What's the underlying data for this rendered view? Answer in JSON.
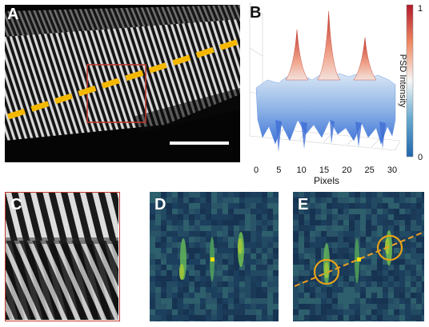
{
  "figure": {
    "panels": {
      "a": {
        "letter": "A"
      },
      "b": {
        "letter": "B"
      },
      "c": {
        "letter": "C"
      },
      "d": {
        "letter": "D"
      },
      "e": {
        "letter": "E"
      }
    },
    "colors": {
      "dashed_line": "#f5b800",
      "roi_box": "#c0392b",
      "scale_bar": "#ffffff",
      "circle": "#e8a317",
      "orange_line": "#f0a020",
      "peak_marker": "#ffe000"
    }
  },
  "chart_data": {
    "type": "surface",
    "xlabel": "Pixels",
    "ticks_x": [
      "0",
      "5",
      "10",
      "15",
      "20",
      "25",
      "30"
    ],
    "xlim": [
      0,
      30
    ],
    "colorbar": {
      "label": "PSD Intensity",
      "ticks": [
        "1",
        "0"
      ],
      "range": [
        0,
        1
      ],
      "colormap": "blue-white-red"
    },
    "peaks": [
      {
        "x": 9,
        "value": 0.72
      },
      {
        "x": 16,
        "value": 1.0
      },
      {
        "x": 24,
        "value": 0.6
      }
    ]
  }
}
